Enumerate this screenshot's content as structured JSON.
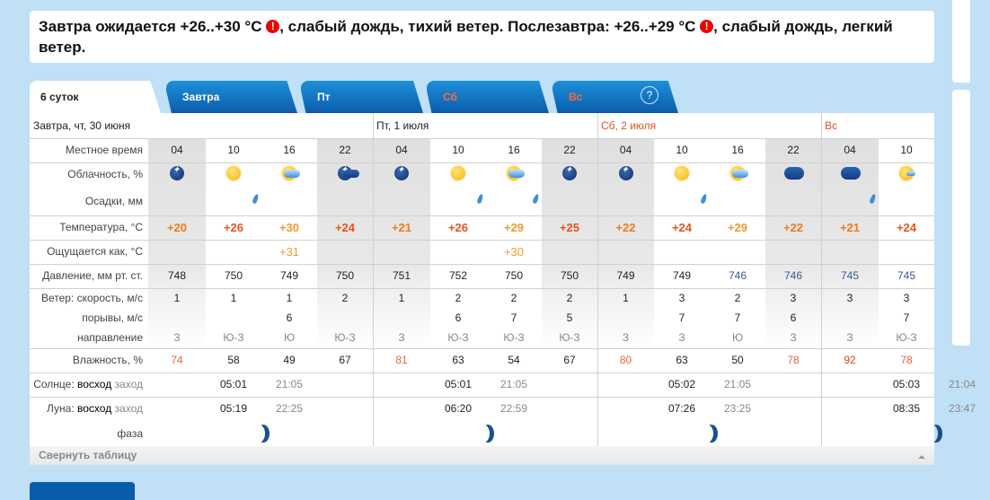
{
  "banner": {
    "part1": "Завтра ожидается +26..+30 °C",
    "part2": ", слабый дождь, тихий ветер. Послезавтра: +26..+29 °C",
    "part3": ", слабый дождь, легкий ветер.",
    "warn": "!"
  },
  "tabs": [
    {
      "label": "6 суток"
    },
    {
      "label": "Завтра"
    },
    {
      "label": "Пт"
    },
    {
      "label": "Сб",
      "weekend": true
    },
    {
      "label": "Вс",
      "weekend": true
    }
  ],
  "help": "?",
  "labels": {
    "time": "Местное время",
    "cloud": "Облачность, %",
    "precip": "Осадки, мм",
    "temp": "Температура, °C",
    "feels": "Ощущается как, °C",
    "pressure": "Давление, мм рт. ст.",
    "wind": "Ветер: скорость, м/с",
    "gust": "порывы, м/с",
    "dir": "направление",
    "humidity": "Влажность, %",
    "sun_prefix": "Солнце: ",
    "rise": "восход",
    "set": " заход",
    "moon_prefix": "Луна: ",
    "phase": "фаза"
  },
  "days": [
    {
      "title": "Завтра, чт, 30 июня",
      "cols": 4,
      "sunrise": "05:01",
      "sunset": "21:05",
      "moonrise": "05:19",
      "moonset": "22:25"
    },
    {
      "title": "Пт, 1 июля",
      "cols": 4,
      "sunrise": "05:01",
      "sunset": "21:05",
      "moonrise": "06:20",
      "moonset": "22:59"
    },
    {
      "title": "Сб, 2 июля",
      "cols": 4,
      "weekend": true,
      "sunrise": "05:02",
      "sunset": "21:05",
      "moonrise": "07:26",
      "moonset": "23:25"
    },
    {
      "title": "Вс",
      "cols": 2,
      "weekend": true,
      "sunrise": "05:03",
      "sunset": "21:04",
      "moonrise": "08:35",
      "moonset": "23:47"
    }
  ],
  "columns": [
    {
      "time": "04",
      "icon": "night-clear",
      "rain": false,
      "temp": "+20",
      "feels": "",
      "pressure": "748",
      "wind": "1",
      "gust": "",
      "dir": "З",
      "humidity": "74",
      "night": true
    },
    {
      "time": "10",
      "icon": "sun",
      "rain": true,
      "temp": "+26",
      "feels": "",
      "pressure": "750",
      "wind": "1",
      "gust": "",
      "dir": "Ю-З",
      "humidity": "58"
    },
    {
      "time": "16",
      "icon": "sun-cloud",
      "rain": false,
      "temp": "+30",
      "feels": "+31",
      "pressure": "749",
      "wind": "1",
      "gust": "6",
      "dir": "Ю",
      "humidity": "49"
    },
    {
      "time": "22",
      "icon": "night-cloud",
      "rain": false,
      "temp": "+24",
      "feels": "",
      "pressure": "750",
      "wind": "2",
      "gust": "",
      "dir": "Ю-З",
      "humidity": "67",
      "night": true
    },
    {
      "time": "04",
      "icon": "night-clear",
      "rain": false,
      "temp": "+21",
      "feels": "",
      "pressure": "751",
      "wind": "1",
      "gust": "",
      "dir": "З",
      "humidity": "81",
      "night": true
    },
    {
      "time": "10",
      "icon": "sun",
      "rain": true,
      "temp": "+26",
      "feels": "",
      "pressure": "752",
      "wind": "2",
      "gust": "6",
      "dir": "Ю-З",
      "humidity": "63"
    },
    {
      "time": "16",
      "icon": "sun-cloud",
      "rain": true,
      "temp": "+29",
      "feels": "+30",
      "pressure": "750",
      "wind": "2",
      "gust": "7",
      "dir": "Ю-З",
      "humidity": "54"
    },
    {
      "time": "22",
      "icon": "night-clear",
      "rain": false,
      "temp": "+25",
      "feels": "",
      "pressure": "750",
      "wind": "2",
      "gust": "5",
      "dir": "Ю-З",
      "humidity": "67",
      "night": true
    },
    {
      "time": "04",
      "icon": "night-clear",
      "rain": false,
      "temp": "+22",
      "feels": "",
      "pressure": "749",
      "wind": "1",
      "gust": "",
      "dir": "З",
      "humidity": "80",
      "night": true
    },
    {
      "time": "10",
      "icon": "sun",
      "rain": true,
      "temp": "+24",
      "feels": "",
      "pressure": "749",
      "wind": "3",
      "gust": "7",
      "dir": "З",
      "humidity": "63"
    },
    {
      "time": "16",
      "icon": "sun-cloud",
      "rain": false,
      "temp": "+29",
      "feels": "",
      "pressure": "746",
      "wind": "2",
      "gust": "7",
      "dir": "Ю",
      "humidity": "50"
    },
    {
      "time": "22",
      "icon": "cloudy-night",
      "rain": false,
      "temp": "+22",
      "feels": "",
      "pressure": "746",
      "wind": "3",
      "gust": "6",
      "dir": "З",
      "humidity": "78",
      "night": true
    },
    {
      "time": "04",
      "icon": "cloudy-night",
      "rain": true,
      "temp": "+21",
      "feels": "",
      "pressure": "745",
      "wind": "3",
      "gust": "",
      "dir": "З",
      "humidity": "92",
      "night": true
    },
    {
      "time": "10",
      "icon": "sun-light-cloud",
      "rain": false,
      "temp": "+24",
      "feels": "",
      "pressure": "745",
      "wind": "3",
      "gust": "7",
      "dir": "Ю-З",
      "humidity": "78"
    }
  ],
  "footer": "Свернуть таблицу",
  "colors": {
    "weekend": "#e8521a",
    "temp_warm": "#f07a1a",
    "temp_hot": "#e8521a",
    "temp_very_hot": "#f09a2a",
    "humidity_high": "#e8643c",
    "humidity_very_high": "#d84a1a",
    "pressure_low": "#3a5a8a",
    "background": "#bfe0f5",
    "tab": "#0a5cac"
  }
}
